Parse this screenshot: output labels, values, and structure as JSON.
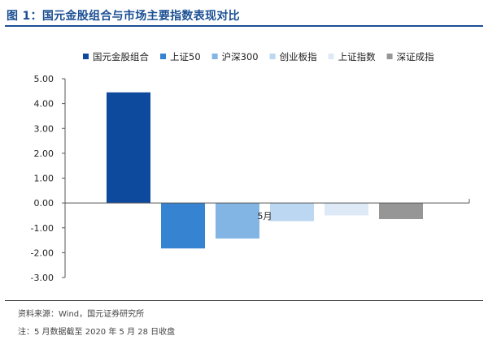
{
  "header": {
    "title": "图 1：国元金股组合与市场主要指数表现对比"
  },
  "footer": {
    "source": "资料来源：Wind，国元证券研究所",
    "note": "注：5 月数据截至 2020 年 5 月 28 日收盘"
  },
  "chart_data": {
    "type": "bar",
    "categories": [
      "5月"
    ],
    "series": [
      {
        "name": "国元金股组合",
        "values": [
          4.45
        ],
        "color": "#0d4a9e"
      },
      {
        "name": "上证50",
        "values": [
          -1.83
        ],
        "color": "#3683d1"
      },
      {
        "name": "沪深300",
        "values": [
          -1.43
        ],
        "color": "#82b4e4"
      },
      {
        "name": "创业板指",
        "values": [
          -0.73
        ],
        "color": "#bbd7f1"
      },
      {
        "name": "上证指数",
        "values": [
          -0.5
        ],
        "color": "#dde9f7"
      },
      {
        "name": "深证成指",
        "values": [
          -0.65
        ],
        "color": "#969696"
      }
    ],
    "yticks": [
      "5.00",
      "4.00",
      "3.00",
      "2.00",
      "1.00",
      "0.00",
      "-1.00",
      "-2.00",
      "-3.00"
    ],
    "ylim": [
      -3,
      5
    ],
    "legend_position": "top",
    "grid": false
  }
}
